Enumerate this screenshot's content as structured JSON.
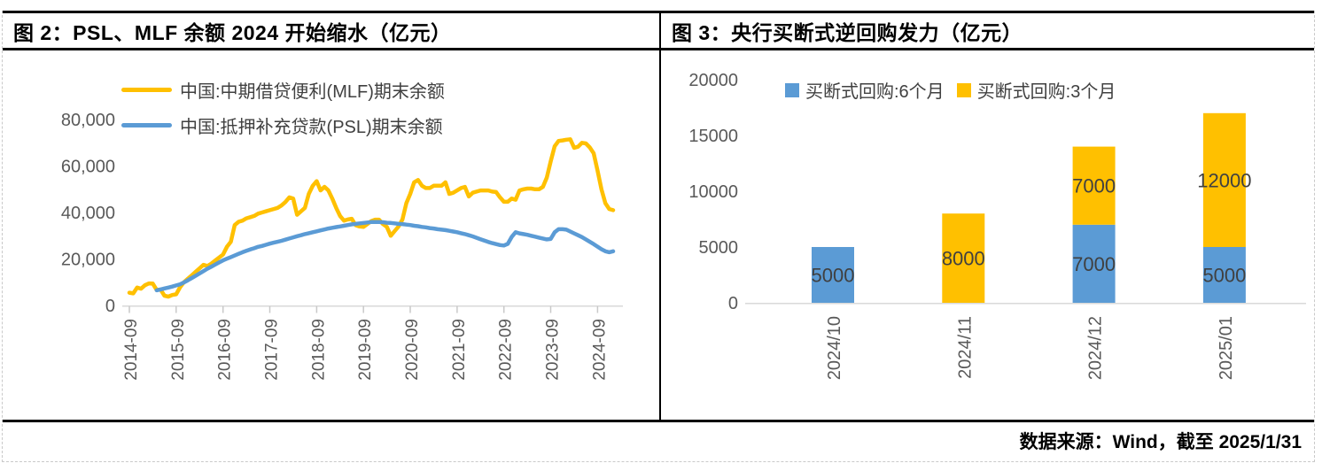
{
  "colors": {
    "gold": "#FFC000",
    "blue": "#5B9BD5",
    "axis_text": "#595959",
    "label_text": "#404040",
    "axis_line": "#d9d9d9",
    "tick": "#c9c9c9",
    "border_black": "#000000",
    "dashed_border": "#c9c9c9"
  },
  "footer": {
    "source": "数据来源：Wind，截至 2025/1/31"
  },
  "chart_data": [
    {
      "type": "line",
      "title": "图 2：PSL、MLF 余额 2024 开始缩水（亿元）",
      "unit": "亿元",
      "grid": false,
      "legend_position": "top-left",
      "ylim": [
        0,
        80000
      ],
      "y_tick_labels": [
        "0",
        "20,000",
        "40,000",
        "60,000",
        "80,000"
      ],
      "x_start": "2014-09",
      "x_end": "2025-01",
      "x_step_months": 1,
      "x_tick_labels": [
        "2014-09",
        "2015-09",
        "2016-09",
        "2017-09",
        "2018-09",
        "2019-09",
        "2020-09",
        "2021-09",
        "2022-09",
        "2023-09",
        "2024-09"
      ],
      "x_tick_indices": [
        0,
        12,
        24,
        36,
        48,
        60,
        72,
        84,
        96,
        108,
        120
      ],
      "series": [
        {
          "id": "mlf",
          "name": "中国:中期借贷便利(MLF)期末余额",
          "color": "#FFC000",
          "values": [
            5500,
            5200,
            7700,
            7200,
            8700,
            9500,
            9400,
            6700,
            6800,
            4200,
            3800,
            4500,
            4800,
            7800,
            10000,
            11500,
            13000,
            14500,
            16000,
            17500,
            17000,
            18000,
            19300,
            20600,
            21900,
            25200,
            27400,
            34600,
            36000,
            36500,
            37500,
            38000,
            38500,
            39500,
            40000,
            40500,
            41000,
            41500,
            42000,
            43000,
            44500,
            46500,
            46000,
            39000,
            40500,
            42000,
            48000,
            51500,
            53500,
            49500,
            51000,
            49500,
            46000,
            42000,
            38500,
            36500,
            37000,
            37300,
            34500,
            34000,
            33800,
            35000,
            36300,
            36900,
            36900,
            35000,
            33800,
            30000,
            32000,
            34000,
            37000,
            44000,
            48000,
            53000,
            54000,
            51500,
            50500,
            50500,
            51500,
            51500,
            51500,
            53000,
            48000,
            48500,
            49500,
            50500,
            51000,
            46900,
            48500,
            49000,
            49500,
            49500,
            49500,
            49000,
            48800,
            46500,
            44600,
            44600,
            46000,
            45500,
            49500,
            50000,
            50300,
            50300,
            50000,
            50000,
            51000,
            55000,
            62000,
            68500,
            70800,
            71000,
            71300,
            71500,
            67800,
            68300,
            70000,
            69700,
            68000,
            65500,
            58000,
            50000,
            44000,
            41500,
            41000
          ]
        },
        {
          "id": "psl",
          "name": "中国:抵押补充贷款(PSL)期末余额",
          "color": "#5B9BD5",
          "values": [
            null,
            null,
            null,
            null,
            null,
            null,
            null,
            6500,
            6900,
            7300,
            7700,
            8100,
            8600,
            9100,
            9900,
            10800,
            11800,
            12800,
            13800,
            14800,
            15800,
            16700,
            17600,
            18500,
            19400,
            20100,
            20800,
            21500,
            22200,
            22900,
            23500,
            24100,
            24600,
            25200,
            25600,
            26100,
            26600,
            27000,
            27400,
            27800,
            28300,
            28800,
            29300,
            29800,
            30200,
            30700,
            31100,
            31500,
            31900,
            32300,
            32700,
            33100,
            33400,
            33700,
            34000,
            34300,
            34600,
            34900,
            35100,
            35300,
            35500,
            35700,
            35900,
            35900,
            35900,
            35800,
            35600,
            35500,
            35300,
            35100,
            35000,
            34800,
            34600,
            34300,
            34100,
            33800,
            33600,
            33300,
            33100,
            32800,
            32600,
            32400,
            32100,
            31800,
            31500,
            31100,
            30700,
            30200,
            29700,
            29100,
            28500,
            27900,
            27300,
            26800,
            26400,
            26000,
            25800,
            26500,
            29500,
            31500,
            31000,
            30700,
            30400,
            30000,
            29600,
            29200,
            28800,
            28400,
            28600,
            31500,
            32800,
            32800,
            32600,
            31800,
            31000,
            30200,
            29400,
            28400,
            27400,
            26400,
            25300,
            24200,
            23300,
            22900,
            23300
          ]
        }
      ]
    },
    {
      "type": "bar",
      "stacked": true,
      "title": "图 3：央行买断式逆回购发力（亿元）",
      "unit": "亿元",
      "grid": false,
      "legend_position": "top",
      "data_labels": true,
      "ylim": [
        0,
        20000
      ],
      "y_tick_labels": [
        "0",
        "5000",
        "10000",
        "15000",
        "20000"
      ],
      "categories": [
        "2024/10",
        "2024/11",
        "2024/12",
        "2025/01"
      ],
      "series": [
        {
          "id": "repo6m",
          "name": "买断式回购:6个月",
          "color": "#5B9BD5",
          "values": [
            5000,
            0,
            7000,
            5000
          ]
        },
        {
          "id": "repo3m",
          "name": "买断式回购:3个月",
          "color": "#FFC000",
          "values": [
            0,
            8000,
            7000,
            12000
          ]
        }
      ]
    }
  ]
}
